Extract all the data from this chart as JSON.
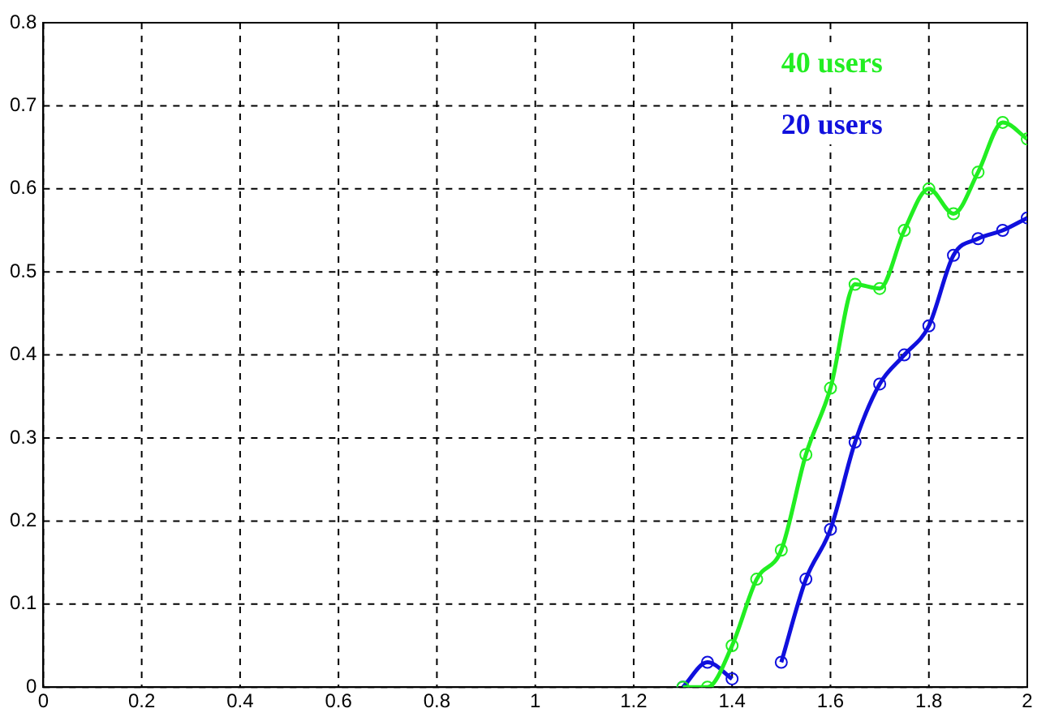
{
  "chart_data": {
    "type": "line",
    "x": [
      1.3,
      1.35,
      1.4,
      1.45,
      1.5,
      1.55,
      1.6,
      1.65,
      1.7,
      1.75,
      1.8,
      1.85,
      1.9,
      1.95,
      2.0
    ],
    "series": [
      {
        "name": "40 users",
        "color": "#22ee22",
        "values": [
          0,
          0,
          0.05,
          0.13,
          0.165,
          0.28,
          0.36,
          0.485,
          0.48,
          0.55,
          0.6,
          0.57,
          0.62,
          0.68,
          0.66
        ]
      },
      {
        "name": "20 users",
        "color": "#1010dd",
        "values": [
          0,
          0.03,
          0.01,
          null,
          0.03,
          0.13,
          0.19,
          0.295,
          0.365,
          0.4,
          0.435,
          0.52,
          0.54,
          0.55,
          0.565
        ]
      }
    ],
    "xlim": [
      0,
      2
    ],
    "xticks": [
      0,
      0.2,
      0.4,
      0.6,
      0.8,
      1,
      1.2,
      1.4,
      1.6,
      1.8,
      2
    ],
    "ylim": [
      0,
      0.8
    ],
    "yticks": [
      0,
      0.1,
      0.2,
      0.3,
      0.4,
      0.5,
      0.6,
      0.7,
      0.8
    ],
    "grid": true,
    "marker": "circle",
    "line_style": "solid",
    "legend": false
  }
}
